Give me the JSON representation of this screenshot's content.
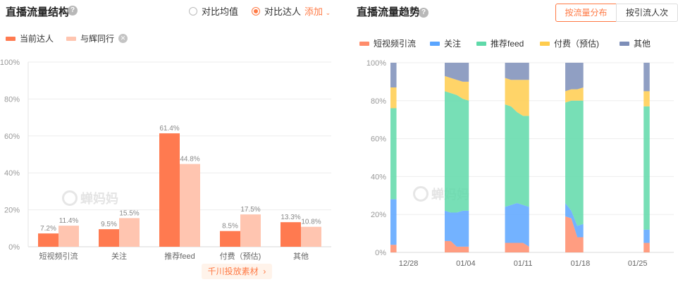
{
  "left_panel": {
    "title": "直播流量结构",
    "help_icon": "question-icon",
    "radio_options": [
      {
        "label": "对比均值",
        "selected": false
      },
      {
        "label": "对比达人",
        "selected": true
      }
    ],
    "add_label": "添加",
    "legend": [
      {
        "label": "当前达人",
        "color": "#ff7a50"
      },
      {
        "label": "与辉同行",
        "color": "#ffc5b0"
      }
    ],
    "material_button": "千川投放素材",
    "watermark": "蝉妈妈"
  },
  "right_panel": {
    "title": "直播流量趋势",
    "help_icon": "question-icon",
    "buttons": [
      {
        "label": "按流量分布",
        "active": true
      },
      {
        "label": "按引流人次",
        "active": false
      }
    ],
    "watermark": "蝉妈妈"
  },
  "chart_data": [
    {
      "type": "bar",
      "categories": [
        "短视频引流",
        "关注",
        "推荐feed",
        "付费（预估)",
        "其他"
      ],
      "series": [
        {
          "name": "当前达人",
          "color": "#ff7a50",
          "values": [
            7.2,
            9.5,
            61.4,
            8.5,
            13.3
          ],
          "labels": [
            "7.2%",
            "9.5%",
            "61.4%",
            "8.5%",
            "13.3%"
          ]
        },
        {
          "name": "与辉同行",
          "color": "#ffc5b0",
          "values": [
            11.4,
            15.5,
            44.8,
            17.5,
            10.8
          ],
          "labels": [
            "11.4%",
            "15.5%",
            "44.8%",
            "17.5%",
            "10.8%"
          ]
        }
      ],
      "ylim": [
        0,
        100
      ],
      "yticks": [
        "0%",
        "20%",
        "40%",
        "60%",
        "80%",
        "100%"
      ],
      "grid": true,
      "legend": "top-left"
    },
    {
      "type": "area",
      "stacked_percent": true,
      "x_ticks": [
        "12/28",
        "01/04",
        "01/11",
        "01/18",
        "01/25"
      ],
      "yticks": [
        "0%",
        "20%",
        "40%",
        "60%",
        "80%",
        "100%"
      ],
      "ylim": [
        0,
        100
      ],
      "legend": "top",
      "series": [
        {
          "name": "短视频引流",
          "color": "#ff8c6b"
        },
        {
          "name": "关注",
          "color": "#5aa5ff"
        },
        {
          "name": "推荐feed",
          "color": "#5fd9a9"
        },
        {
          "name": "付费（预估)",
          "color": "#ffcc4d"
        },
        {
          "name": "其他",
          "color": "#7d8eb8"
        }
      ],
      "segments": [
        {
          "days": [
            0,
            1
          ],
          "points": [
            [
              4,
              28,
              76,
              87
            ],
            [
              4,
              28,
              76,
              87
            ]
          ]
        },
        {
          "days": [
            9,
            10,
            11,
            12,
            13
          ],
          "points": [
            [
              6,
              22,
              85,
              93
            ],
            [
              6,
              21,
              84,
              92
            ],
            [
              3,
              21,
              83,
              91
            ],
            [
              3,
              22,
              81,
              90
            ],
            [
              3,
              22,
              80,
              90
            ]
          ]
        },
        {
          "days": [
            19,
            20,
            21,
            22,
            23
          ],
          "points": [
            [
              5,
              24,
              78,
              92
            ],
            [
              5,
              25,
              77,
              91
            ],
            [
              5,
              26,
              74,
              91
            ],
            [
              5,
              25,
              72,
              91
            ],
            [
              3,
              24,
              72,
              91
            ]
          ]
        },
        {
          "days": [
            29,
            30,
            31,
            32
          ],
          "points": [
            [
              19,
              26,
              79,
              85
            ],
            [
              18,
              22,
              80,
              86
            ],
            [
              8,
              14,
              80,
              86
            ],
            [
              8,
              15,
              80,
              87
            ]
          ]
        },
        {
          "days": [
            42,
            43
          ],
          "points": [
            [
              5,
              12,
              77,
              85
            ],
            [
              5,
              12,
              77,
              85
            ]
          ]
        }
      ],
      "x_domain": [
        0,
        47
      ]
    }
  ]
}
